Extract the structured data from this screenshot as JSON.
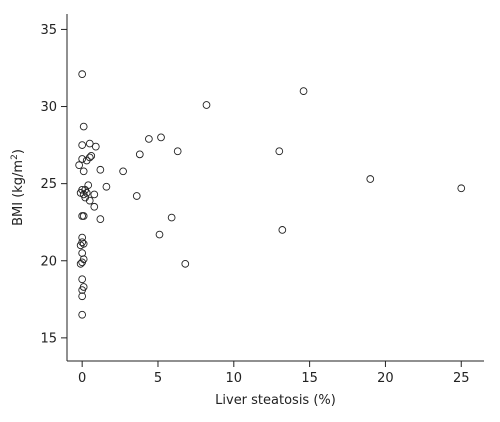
{
  "chart_data": {
    "type": "scatter",
    "xlabel": "Liver steatosis (%)",
    "ylabel_main": "BMI (kg/m",
    "ylabel_sup": "2",
    "ylabel_end": ")",
    "xlim": [
      -1,
      26.5
    ],
    "ylim": [
      13.5,
      36
    ],
    "xticks": [
      0,
      5,
      10,
      15,
      20,
      25
    ],
    "yticks": [
      15,
      20,
      25,
      30,
      35
    ],
    "points": [
      [
        0,
        32.1
      ],
      [
        0.1,
        28.7
      ],
      [
        0,
        27.5
      ],
      [
        0.5,
        27.6
      ],
      [
        0.9,
        27.4
      ],
      [
        0.3,
        26.5
      ],
      [
        0.6,
        26.8
      ],
      [
        0.5,
        26.7
      ],
      [
        -0.2,
        26.2
      ],
      [
        0,
        26.6
      ],
      [
        1.2,
        25.9
      ],
      [
        0.1,
        25.8
      ],
      [
        0.4,
        24.9
      ],
      [
        1.6,
        24.8
      ],
      [
        0,
        24.6
      ],
      [
        -0.1,
        24.4
      ],
      [
        0.2,
        24.6
      ],
      [
        0.3,
        24.4
      ],
      [
        0.1,
        24.3
      ],
      [
        0.8,
        24.3
      ],
      [
        0.2,
        24.1
      ],
      [
        0.5,
        23.9
      ],
      [
        0.8,
        23.5
      ],
      [
        1.2,
        22.7
      ],
      [
        0,
        22.9
      ],
      [
        0.1,
        22.9
      ],
      [
        0,
        21.5
      ],
      [
        0,
        21.2
      ],
      [
        -0.1,
        21.0
      ],
      [
        0.1,
        21.1
      ],
      [
        0,
        20.5
      ],
      [
        0.1,
        20.1
      ],
      [
        0,
        19.9
      ],
      [
        -0.1,
        19.8
      ],
      [
        0,
        18.8
      ],
      [
        0.1,
        18.3
      ],
      [
        0,
        18.1
      ],
      [
        0,
        17.7
      ],
      [
        0,
        16.5
      ],
      [
        2.7,
        25.8
      ],
      [
        3.6,
        24.2
      ],
      [
        3.8,
        26.9
      ],
      [
        4.4,
        27.9
      ],
      [
        5.2,
        28.0
      ],
      [
        6.3,
        27.1
      ],
      [
        5.9,
        22.8
      ],
      [
        5.1,
        21.7
      ],
      [
        6.8,
        19.8
      ],
      [
        8.2,
        30.1
      ],
      [
        13.0,
        27.1
      ],
      [
        13.2,
        22.0
      ],
      [
        14.6,
        31.0
      ],
      [
        19.0,
        25.3
      ],
      [
        25.0,
        24.7
      ]
    ]
  }
}
